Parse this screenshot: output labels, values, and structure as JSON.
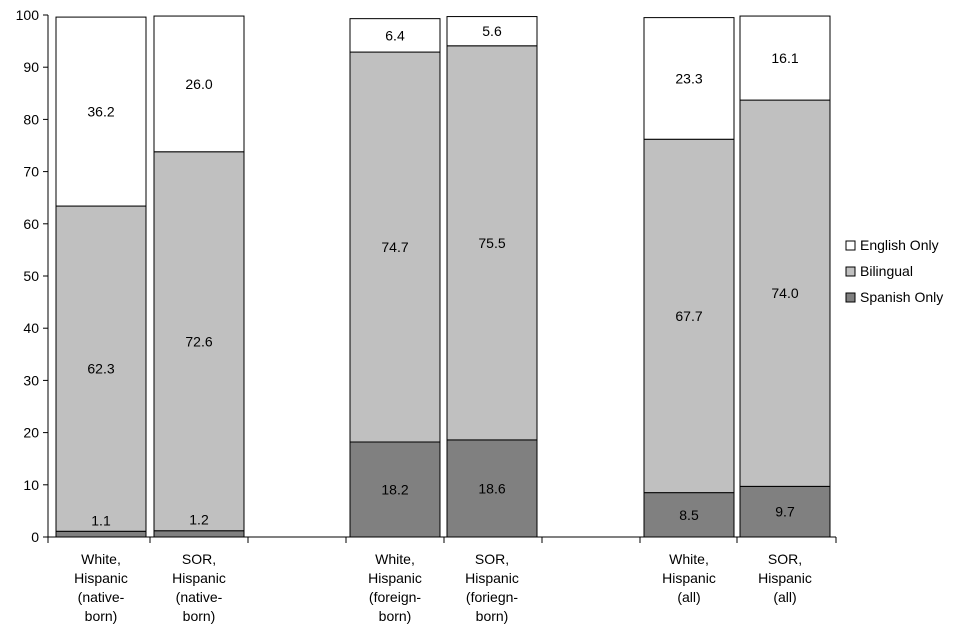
{
  "chart_data": {
    "type": "bar",
    "stacked": true,
    "title": "",
    "xlabel": "",
    "ylabel": "",
    "ylim": [
      0,
      100
    ],
    "yticks": [
      0,
      10,
      20,
      30,
      40,
      50,
      60,
      70,
      80,
      90,
      100
    ],
    "categories": [
      [
        "White,",
        "Hispanic",
        "(native-",
        "born)"
      ],
      [
        "SOR,",
        "Hispanic",
        "(native-",
        "born)"
      ],
      [
        "White,",
        "Hispanic",
        "(foreign-",
        "born)"
      ],
      [
        "SOR,",
        "Hispanic",
        "(foriegn-",
        "born)"
      ],
      [
        "White,",
        "Hispanic",
        "(all)"
      ],
      [
        "SOR,",
        "Hispanic",
        "(all)"
      ]
    ],
    "series": [
      {
        "name": "Spanish Only",
        "color": "#808080",
        "values": [
          1.1,
          1.2,
          18.2,
          18.6,
          8.5,
          9.7
        ]
      },
      {
        "name": "Bilingual",
        "color": "#c0c0c0",
        "values": [
          62.3,
          72.6,
          74.7,
          75.5,
          67.7,
          74.0
        ]
      },
      {
        "name": "English Only",
        "color": "#ffffff",
        "values": [
          36.2,
          26.0,
          6.4,
          5.6,
          23.3,
          16.1
        ]
      }
    ],
    "data_labels": [
      [
        "1.1",
        "1.2",
        "18.2",
        "18.6",
        "8.5",
        "9.7"
      ],
      [
        "62.3",
        "72.6",
        "74.7",
        "75.5",
        "67.7",
        "74.0"
      ],
      [
        "36.2",
        "26.0",
        "6.4",
        "5.6",
        "23.3",
        "16.1"
      ]
    ],
    "legend": {
      "placement": "right",
      "entries": [
        "English Only",
        "Bilingual",
        "Spanish Only"
      ]
    },
    "grid": false
  }
}
